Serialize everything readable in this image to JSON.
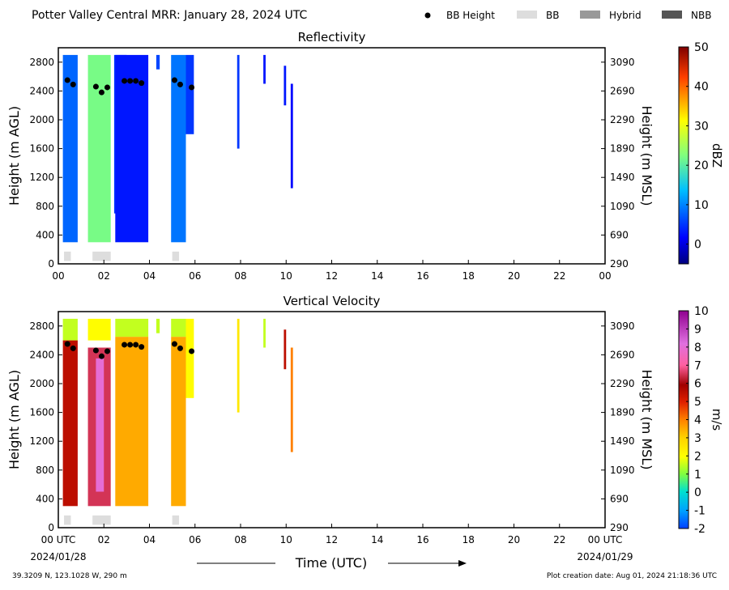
{
  "header": {
    "title": "Potter Valley Central MRR:  January 28, 2024 UTC",
    "legend": [
      {
        "label": "BB Height",
        "marker": "dot",
        "color": "#000000"
      },
      {
        "label": "BB",
        "marker": "box",
        "color": "#dddddd"
      },
      {
        "label": "Hybrid",
        "marker": "box",
        "color": "#999999"
      },
      {
        "label": "NBB",
        "marker": "box",
        "color": "#555555"
      }
    ]
  },
  "footer": {
    "location": "39.3209 N, 123.1028 W, 290 m",
    "creation": "Plot creation date: Aug 01, 2024 21:18:36 UTC",
    "xlabel": "Time (UTC)",
    "start_date": "2024/01/28",
    "end_date": "2024/01/29"
  },
  "chart_data": [
    {
      "type": "heatmap",
      "title": "Reflectivity",
      "ylabel": "Height (m AGL)",
      "ylabel_right": "Height (m MSL)",
      "ylim": [
        0,
        3000
      ],
      "xlim": [
        0,
        24
      ],
      "yticks": [
        0,
        400,
        800,
        1200,
        1600,
        2000,
        2400,
        2800
      ],
      "yticks_right": [
        "290",
        "690",
        "1090",
        "1490",
        "1890",
        "2290",
        "2690",
        "3090"
      ],
      "xtick_labels": [
        "00",
        "02",
        "04",
        "06",
        "08",
        "10",
        "12",
        "14",
        "16",
        "18",
        "20",
        "22",
        "00"
      ],
      "colorbar": {
        "label": "dBZ",
        "min": -5,
        "max": 50,
        "ticks": [
          0,
          10,
          20,
          30,
          40,
          50
        ]
      },
      "bb_height_points": [
        [
          0.4,
          2550
        ],
        [
          0.65,
          2490
        ],
        [
          1.65,
          2460
        ],
        [
          1.9,
          2380
        ],
        [
          2.15,
          2450
        ],
        [
          2.9,
          2540
        ],
        [
          3.15,
          2540
        ],
        [
          3.4,
          2540
        ],
        [
          3.65,
          2510
        ],
        [
          5.1,
          2550
        ],
        [
          5.35,
          2490
        ],
        [
          5.85,
          2450
        ]
      ],
      "bb_flag_spans": [
        [
          0.25,
          0.55
        ],
        [
          1.5,
          2.3
        ],
        [
          5.0,
          5.3
        ]
      ],
      "echo_columns": [
        {
          "x0": 0.2,
          "x1": 0.85,
          "y0": 300,
          "y1": 2900,
          "value": 8
        },
        {
          "x0": 1.3,
          "x1": 2.3,
          "y0": 300,
          "y1": 2900,
          "value": 22
        },
        {
          "x0": 2.45,
          "x1": 3.0,
          "y0": 700,
          "y1": 2900,
          "value": 5
        },
        {
          "x0": 2.5,
          "x1": 3.95,
          "y0": 300,
          "y1": 2900,
          "value": 3
        },
        {
          "x0": 4.3,
          "x1": 4.45,
          "y0": 2700,
          "y1": 2900,
          "value": 6
        },
        {
          "x0": 4.95,
          "x1": 5.6,
          "y0": 300,
          "y1": 2900,
          "value": 9
        },
        {
          "x0": 5.6,
          "x1": 5.95,
          "y0": 1800,
          "y1": 2900,
          "value": 5
        },
        {
          "x0": 7.85,
          "x1": 7.95,
          "y0": 1600,
          "y1": 2900,
          "value": 5
        },
        {
          "x0": 9.0,
          "x1": 9.1,
          "y0": 2500,
          "y1": 2900,
          "value": 3
        },
        {
          "x0": 9.9,
          "x1": 10.0,
          "y0": 2200,
          "y1": 2750,
          "value": 3
        },
        {
          "x0": 10.2,
          "x1": 10.3,
          "y0": 1050,
          "y1": 2500,
          "value": 2
        }
      ]
    },
    {
      "type": "heatmap",
      "title": "Vertical Velocity",
      "ylabel": "Height (m AGL)",
      "ylabel_right": "Height (m MSL)",
      "ylim": [
        0,
        3000
      ],
      "xlim": [
        0,
        24
      ],
      "yticks": [
        0,
        400,
        800,
        1200,
        1600,
        2000,
        2400,
        2800
      ],
      "yticks_right": [
        "290",
        "690",
        "1090",
        "1490",
        "1890",
        "2290",
        "2690",
        "3090"
      ],
      "xtick_labels": [
        "00 UTC",
        "02",
        "04",
        "06",
        "08",
        "10",
        "12",
        "14",
        "16",
        "18",
        "20",
        "22",
        "00 UTC"
      ],
      "colorbar": {
        "label": "m/s",
        "min": -2,
        "max": 10,
        "ticks": [
          -2,
          -1,
          0,
          1,
          2,
          3,
          4,
          5,
          6,
          7,
          8,
          9,
          10
        ]
      },
      "bb_height_points": [
        [
          0.4,
          2550
        ],
        [
          0.65,
          2490
        ],
        [
          1.65,
          2460
        ],
        [
          1.9,
          2380
        ],
        [
          2.15,
          2450
        ],
        [
          2.9,
          2540
        ],
        [
          3.15,
          2540
        ],
        [
          3.4,
          2540
        ],
        [
          3.65,
          2510
        ],
        [
          5.1,
          2550
        ],
        [
          5.35,
          2490
        ],
        [
          5.85,
          2450
        ]
      ],
      "bb_flag_spans": [
        [
          0.25,
          0.55
        ],
        [
          1.5,
          2.3
        ],
        [
          5.0,
          5.3
        ]
      ],
      "echo_columns": [
        {
          "x0": 0.2,
          "x1": 0.85,
          "y0": 2600,
          "y1": 2900,
          "value": 1.5
        },
        {
          "x0": 0.2,
          "x1": 0.85,
          "y0": 300,
          "y1": 2600,
          "value": 5.5
        },
        {
          "x0": 1.3,
          "x1": 2.3,
          "y0": 2600,
          "y1": 2900,
          "value": 2
        },
        {
          "x0": 1.3,
          "x1": 2.3,
          "y0": 300,
          "y1": 2500,
          "value": 6.5
        },
        {
          "x0": 1.65,
          "x1": 2.0,
          "y0": 500,
          "y1": 2350,
          "value": 8
        },
        {
          "x0": 2.5,
          "x1": 3.95,
          "y0": 2650,
          "y1": 2900,
          "value": 1.5
        },
        {
          "x0": 2.5,
          "x1": 3.95,
          "y0": 300,
          "y1": 2650,
          "value": 3.5
        },
        {
          "x0": 4.3,
          "x1": 4.45,
          "y0": 2700,
          "y1": 2900,
          "value": 1.5
        },
        {
          "x0": 4.95,
          "x1": 5.6,
          "y0": 2650,
          "y1": 2900,
          "value": 1.5
        },
        {
          "x0": 4.95,
          "x1": 5.6,
          "y0": 300,
          "y1": 2650,
          "value": 3.5
        },
        {
          "x0": 5.6,
          "x1": 5.95,
          "y0": 1800,
          "y1": 2900,
          "value": 2
        },
        {
          "x0": 7.85,
          "x1": 7.95,
          "y0": 1600,
          "y1": 2900,
          "value": 2.5
        },
        {
          "x0": 9.0,
          "x1": 9.1,
          "y0": 2500,
          "y1": 2900,
          "value": 1.5
        },
        {
          "x0": 9.9,
          "x1": 10.0,
          "y0": 2200,
          "y1": 2750,
          "value": 5.5
        },
        {
          "x0": 10.2,
          "x1": 10.3,
          "y0": 1050,
          "y1": 2500,
          "value": 4
        }
      ]
    }
  ]
}
